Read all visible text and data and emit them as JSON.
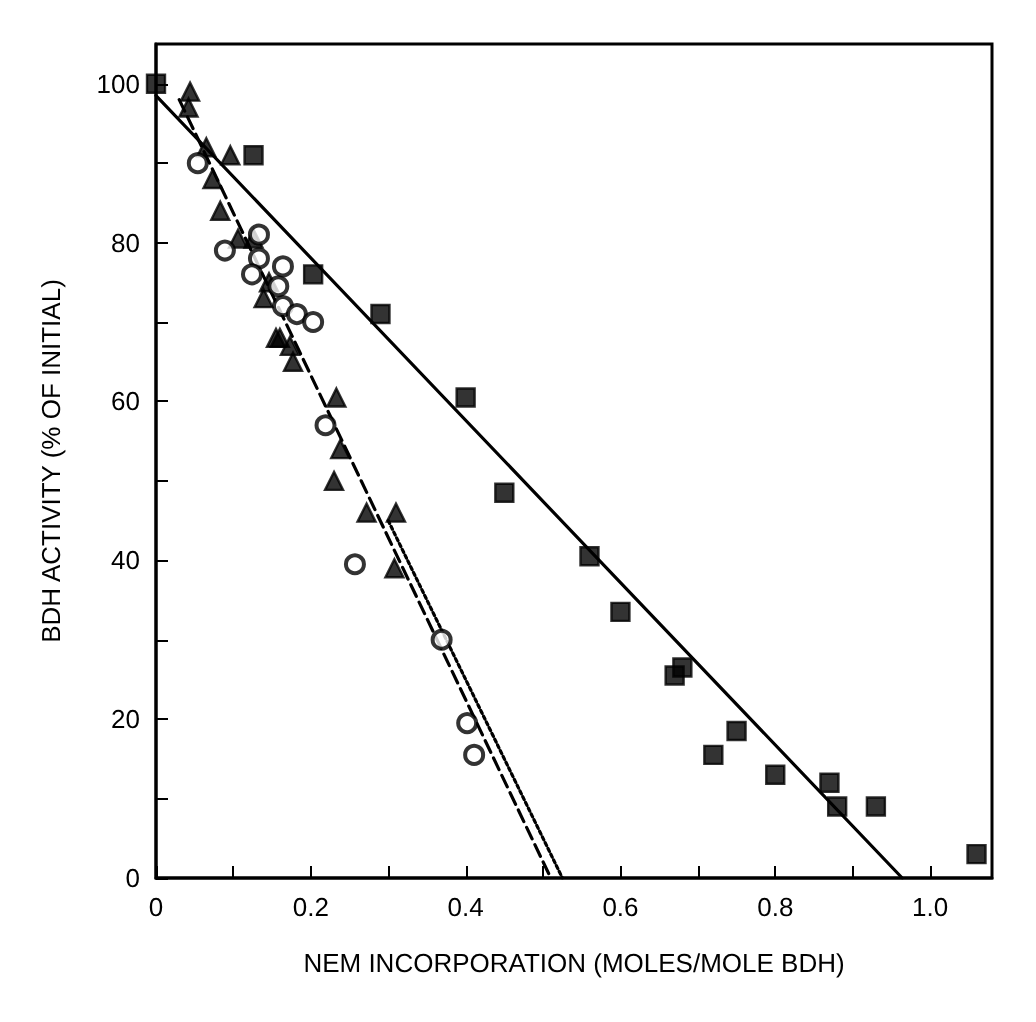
{
  "chart_data": {
    "type": "scatter",
    "xlabel": "NEM INCORPORATION (MOLES/MOLE BDH)",
    "ylabel": "BDH ACTIVITY (% OF INITIAL)",
    "xlim": [
      0,
      1.08
    ],
    "ylim": [
      0,
      105
    ],
    "xticks": [
      0,
      {
        "value": 0.1,
        "label": null
      },
      0.2,
      {
        "value": 0.3,
        "label": null
      },
      0.4,
      {
        "value": 0.5,
        "label": null
      },
      0.6,
      {
        "value": 0.7,
        "label": null
      },
      0.8,
      {
        "value": 0.9,
        "label": null
      },
      {
        "value": 1.0,
        "label": "1.0"
      }
    ],
    "yticks": [
      0,
      {
        "value": 10,
        "label": null
      },
      20,
      {
        "value": 30,
        "label": null
      },
      40,
      {
        "value": 50,
        "label": null
      },
      60,
      {
        "value": 70,
        "label": null
      },
      80,
      {
        "value": 90,
        "label": null
      },
      100
    ],
    "series": [
      {
        "marker": "square",
        "color": "#000000",
        "x": [
          0,
          0.126,
          0.203,
          0.29,
          0.4,
          0.45,
          0.56,
          0.6,
          0.67,
          0.68,
          0.72,
          0.75,
          0.8,
          0.87,
          0.88,
          0.93,
          1.06
        ],
        "values": [
          100,
          91,
          76,
          71,
          60.5,
          48.5,
          40.5,
          33.5,
          25.5,
          26.5,
          15.5,
          18.5,
          13,
          12,
          9,
          9,
          3
        ]
      },
      {
        "marker": "triangle",
        "color": "#000000",
        "x": [
          0.044,
          0.042,
          0.065,
          0.096,
          0.073,
          0.083,
          0.106,
          0.126,
          0.146,
          0.139,
          0.155,
          0.16,
          0.173,
          0.177,
          0.233,
          0.238,
          0.23,
          0.272,
          0.31,
          0.308
        ],
        "values": [
          99,
          97,
          92,
          91,
          88,
          84,
          80.5,
          80.5,
          75,
          73,
          68,
          68,
          67,
          65,
          60.5,
          54,
          50,
          46,
          46,
          39
        ]
      },
      {
        "marker": "circle",
        "color": "#000000",
        "x": [
          0.054,
          0.089,
          0.133,
          0.133,
          0.124,
          0.164,
          0.158,
          0.164,
          0.182,
          0.203,
          0.219,
          0.257,
          0.369,
          0.402,
          0.411
        ],
        "values": [
          90,
          79,
          81,
          78,
          76,
          77,
          74.5,
          72,
          71,
          70,
          57,
          39.5,
          30,
          19.5,
          15.5
        ]
      },
      {
        "type": "line",
        "line_style": "solid",
        "color": "#000000",
        "x": [
          0,
          0.964
        ],
        "values": [
          98.5,
          0
        ]
      },
      {
        "type": "line",
        "line_style": "dashed",
        "color": "#000000",
        "x": [
          0.03,
          0.51
        ],
        "values": [
          98,
          0
        ]
      },
      {
        "type": "line",
        "line_style": "dotted",
        "color": "#000000",
        "x": [
          0.3,
          0.525
        ],
        "values": [
          45,
          0
        ]
      }
    ]
  }
}
